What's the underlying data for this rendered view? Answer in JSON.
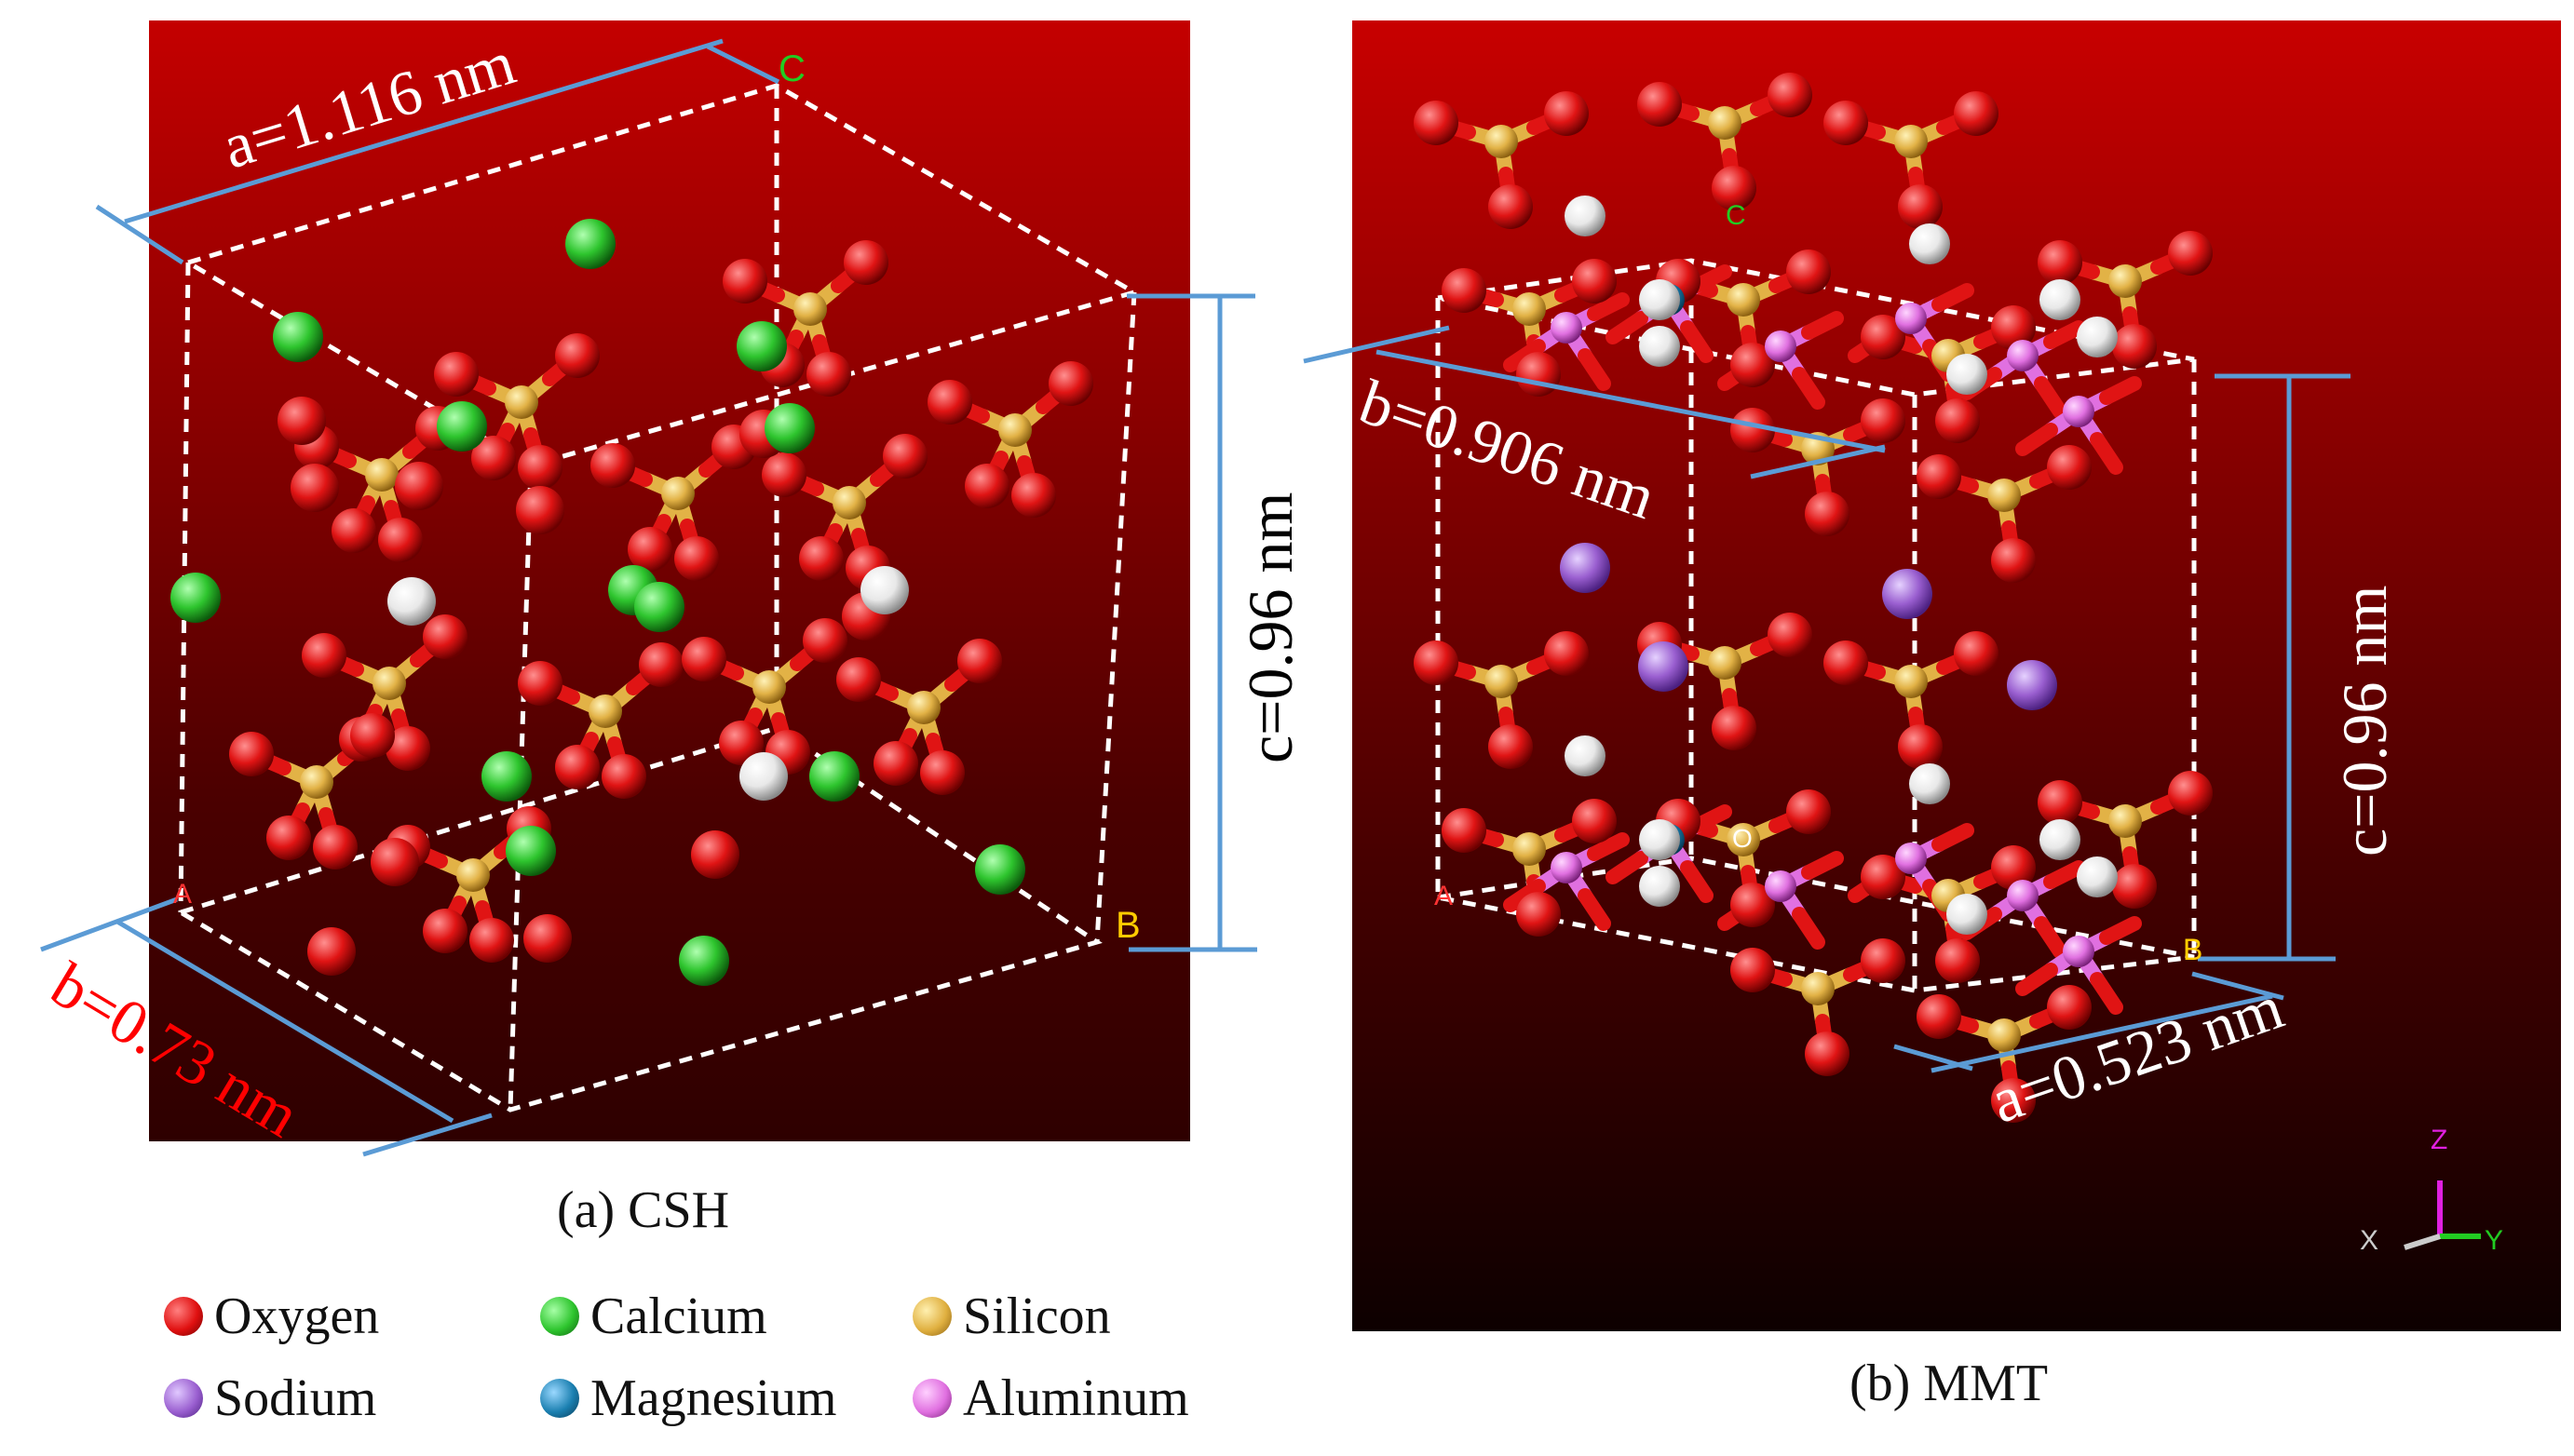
{
  "panels": {
    "csh": {
      "caption": "(a) CSH",
      "dims": {
        "a": "a=1.116 nm",
        "b": "b=0.73 nm",
        "c": "c=0.96 nm"
      },
      "corners": {
        "c": "C",
        "b": "B",
        "a": "A"
      }
    },
    "mmt": {
      "caption": "(b) MMT",
      "dims": {
        "a": "a=0.523 nm",
        "b": "b=0.906 nm",
        "c": "c=0.96 nm"
      },
      "corners": {
        "c": "C",
        "b": "B",
        "a": "A",
        "o": "O"
      },
      "axes": {
        "x": "X",
        "y": "Y",
        "z": "Z"
      }
    }
  },
  "legend": [
    {
      "label": "Oxygen",
      "color": "#e01010"
    },
    {
      "label": "Calcium",
      "color": "#2ec52e"
    },
    {
      "label": "Silicon",
      "color": "#e0b040"
    },
    {
      "label": "Sodium",
      "color": "#9a5fd0"
    },
    {
      "label": "Magnesium",
      "color": "#1a7fb0"
    },
    {
      "label": "Aluminum",
      "color": "#e070e0"
    }
  ],
  "colors": {
    "dimension_line": "#5b9bd5",
    "b_label_csh": "#ff0000",
    "corner_c_csh": "#22cc22",
    "corner_b": "#ffcc00"
  }
}
